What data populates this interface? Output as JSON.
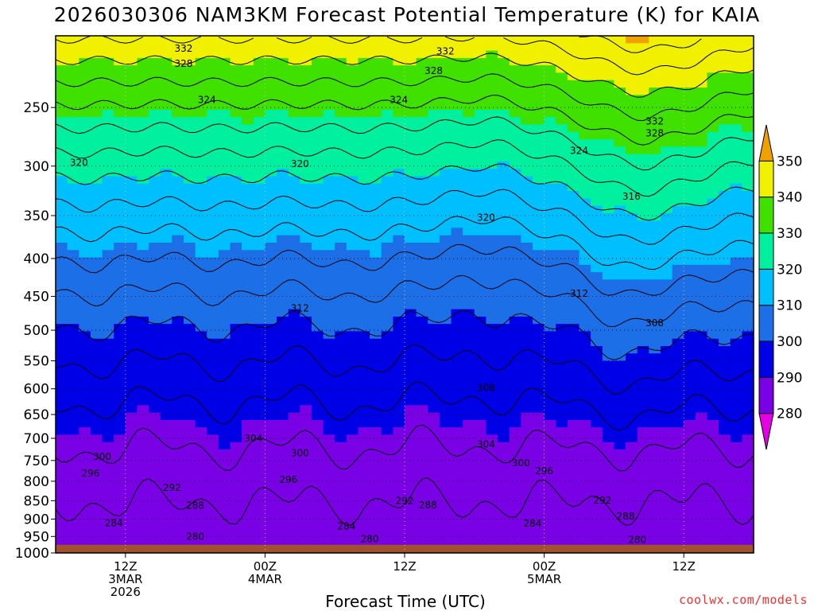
{
  "title": "2026030306 NAM3KM Forecast Potential Temperature (K) for KAIA",
  "xlabel": "Forecast Time (UTC)",
  "credit": "coolwx.com/models",
  "chart_data": {
    "type": "heatmap",
    "title": "2026030306 NAM3KM Forecast Potential Temperature (K) for KAIA",
    "xlabel": "Forecast Time (UTC)",
    "ylabel": "",
    "y_scale": "log-pressure (inverted)",
    "ylim": [
      1000,
      200
    ],
    "yticks": [
      250,
      300,
      350,
      400,
      450,
      500,
      550,
      600,
      650,
      700,
      750,
      800,
      850,
      900,
      950,
      1000
    ],
    "xticks": [
      {
        "t": 6,
        "label": [
          "12Z",
          "3MAR",
          "2026"
        ]
      },
      {
        "t": 18,
        "label": [
          "00Z",
          "4MAR"
        ]
      },
      {
        "t": 30,
        "label": [
          "12Z"
        ]
      },
      {
        "t": 42,
        "label": [
          "00Z",
          "5MAR"
        ]
      },
      {
        "t": 54,
        "label": [
          "12Z"
        ]
      }
    ],
    "xlim_hours": [
      0,
      60
    ],
    "grid": "dotted",
    "colorbar": {
      "levels": [
        280,
        290,
        300,
        310,
        320,
        330,
        340,
        350
      ],
      "colors": [
        "#e600e6",
        "#7a00e6",
        "#0000e6",
        "#1c6fe6",
        "#00bfff",
        "#00f0a0",
        "#40e000",
        "#f0f000",
        "#f0a000"
      ],
      "labels": [
        "280",
        "290",
        "300",
        "310",
        "320",
        "330",
        "340",
        "350"
      ]
    },
    "contour_interval": 4,
    "contour_labels": [
      {
        "value": 332,
        "t": 11,
        "p": 208
      },
      {
        "value": 328,
        "t": 11,
        "p": 218
      },
      {
        "value": 324,
        "t": 13,
        "p": 244
      },
      {
        "value": 320,
        "t": 2,
        "p": 297
      },
      {
        "value": 320,
        "t": 21,
        "p": 298
      },
      {
        "value": 332,
        "t": 33.5,
        "p": 210
      },
      {
        "value": 328,
        "t": 32.5,
        "p": 223
      },
      {
        "value": 324,
        "t": 29.5,
        "p": 244
      },
      {
        "value": 320,
        "t": 37,
        "p": 352
      },
      {
        "value": 324,
        "t": 45,
        "p": 286
      },
      {
        "value": 332,
        "t": 51.5,
        "p": 261
      },
      {
        "value": 328,
        "t": 51.5,
        "p": 271
      },
      {
        "value": 316,
        "t": 49.5,
        "p": 330
      },
      {
        "value": 312,
        "t": 21,
        "p": 467
      },
      {
        "value": 312,
        "t": 45,
        "p": 446
      },
      {
        "value": 308,
        "t": 51.5,
        "p": 489
      },
      {
        "value": 308,
        "t": 37,
        "p": 598
      },
      {
        "value": 304,
        "t": 17,
        "p": 700
      },
      {
        "value": 304,
        "t": 37,
        "p": 713
      },
      {
        "value": 300,
        "t": 4,
        "p": 741
      },
      {
        "value": 300,
        "t": 21,
        "p": 733
      },
      {
        "value": 300,
        "t": 40,
        "p": 756
      },
      {
        "value": 296,
        "t": 3,
        "p": 781
      },
      {
        "value": 296,
        "t": 20,
        "p": 796
      },
      {
        "value": 296,
        "t": 42,
        "p": 775
      },
      {
        "value": 292,
        "t": 10,
        "p": 816
      },
      {
        "value": 292,
        "t": 30,
        "p": 850
      },
      {
        "value": 292,
        "t": 47,
        "p": 849
      },
      {
        "value": 288,
        "t": 12,
        "p": 863
      },
      {
        "value": 288,
        "t": 32,
        "p": 862
      },
      {
        "value": 288,
        "t": 49,
        "p": 892
      },
      {
        "value": 284,
        "t": 5,
        "p": 911
      },
      {
        "value": 284,
        "t": 25,
        "p": 920
      },
      {
        "value": 284,
        "t": 41,
        "p": 912
      },
      {
        "value": 280,
        "t": 12,
        "p": 950
      },
      {
        "value": 280,
        "t": 27,
        "p": 958
      },
      {
        "value": 280,
        "t": 50,
        "p": 960
      }
    ],
    "shading_notes": "Potential temperature increases with height from ~280 K near 950 hPa to >340 K above 250 hPa; warm (340+) tongue aloft near 5MAR 06-12Z; terrain below ~975 hPa shaded brown."
  },
  "colors": {
    "terrain": "#a0522d",
    "background": "#ffffff",
    "credit": "#ff2a2a"
  }
}
